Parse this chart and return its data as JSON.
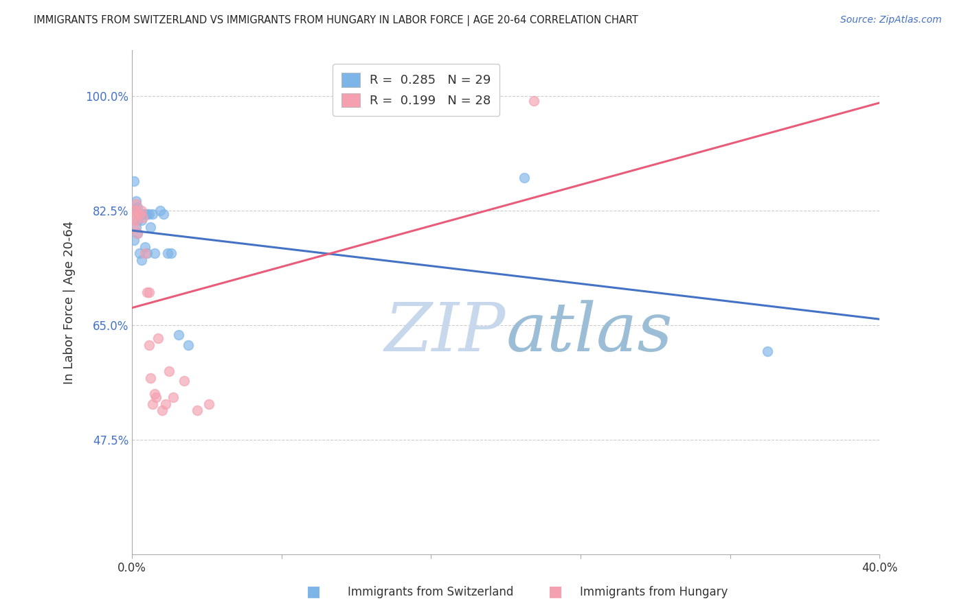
{
  "title": "IMMIGRANTS FROM SWITZERLAND VS IMMIGRANTS FROM HUNGARY IN LABOR FORCE | AGE 20-64 CORRELATION CHART",
  "source": "Source: ZipAtlas.com",
  "ylabel": "In Labor Force | Age 20-64",
  "xlim": [
    0.0,
    0.4
  ],
  "ylim": [
    0.3,
    1.07
  ],
  "yticks": [
    0.475,
    0.65,
    0.825,
    1.0
  ],
  "ytick_labels": [
    "47.5%",
    "65.0%",
    "82.5%",
    "100.0%"
  ],
  "switzerland_x": [
    0.001,
    0.001,
    0.002,
    0.002,
    0.002,
    0.003,
    0.003,
    0.003,
    0.004,
    0.004,
    0.005,
    0.005,
    0.006,
    0.007,
    0.007,
    0.008,
    0.008,
    0.009,
    0.01,
    0.011,
    0.012,
    0.015,
    0.017,
    0.019,
    0.021,
    0.025,
    0.03,
    0.21,
    0.34
  ],
  "switzerland_y": [
    0.87,
    0.78,
    0.84,
    0.825,
    0.8,
    0.83,
    0.81,
    0.79,
    0.82,
    0.76,
    0.81,
    0.75,
    0.82,
    0.82,
    0.77,
    0.82,
    0.76,
    0.82,
    0.8,
    0.82,
    0.76,
    0.825,
    0.82,
    0.76,
    0.76,
    0.635,
    0.62,
    0.875,
    0.61
  ],
  "hungary_x": [
    0.001,
    0.001,
    0.001,
    0.002,
    0.002,
    0.002,
    0.003,
    0.003,
    0.004,
    0.005,
    0.006,
    0.007,
    0.008,
    0.009,
    0.009,
    0.01,
    0.011,
    0.012,
    0.013,
    0.014,
    0.016,
    0.018,
    0.02,
    0.022,
    0.028,
    0.035,
    0.041,
    0.215
  ],
  "hungary_y": [
    0.825,
    0.815,
    0.8,
    0.835,
    0.825,
    0.81,
    0.82,
    0.79,
    0.82,
    0.825,
    0.815,
    0.76,
    0.7,
    0.7,
    0.62,
    0.57,
    0.53,
    0.545,
    0.54,
    0.63,
    0.52,
    0.53,
    0.58,
    0.54,
    0.565,
    0.52,
    0.53,
    0.992
  ],
  "R_switzerland": 0.285,
  "N_switzerland": 29,
  "R_hungary": 0.199,
  "N_hungary": 28,
  "color_switzerland": "#7EB5E8",
  "color_hungary": "#F4A0B0",
  "line_color_switzerland": "#4472C4",
  "line_color_hungary": "#E85C7A",
  "marker_size": 100,
  "background_color": "#FFFFFF",
  "watermark_zip": "ZIP",
  "watermark_atlas": "atlas",
  "watermark_color_zip": "#C8D8EC",
  "watermark_color_atlas": "#9BBDD6"
}
